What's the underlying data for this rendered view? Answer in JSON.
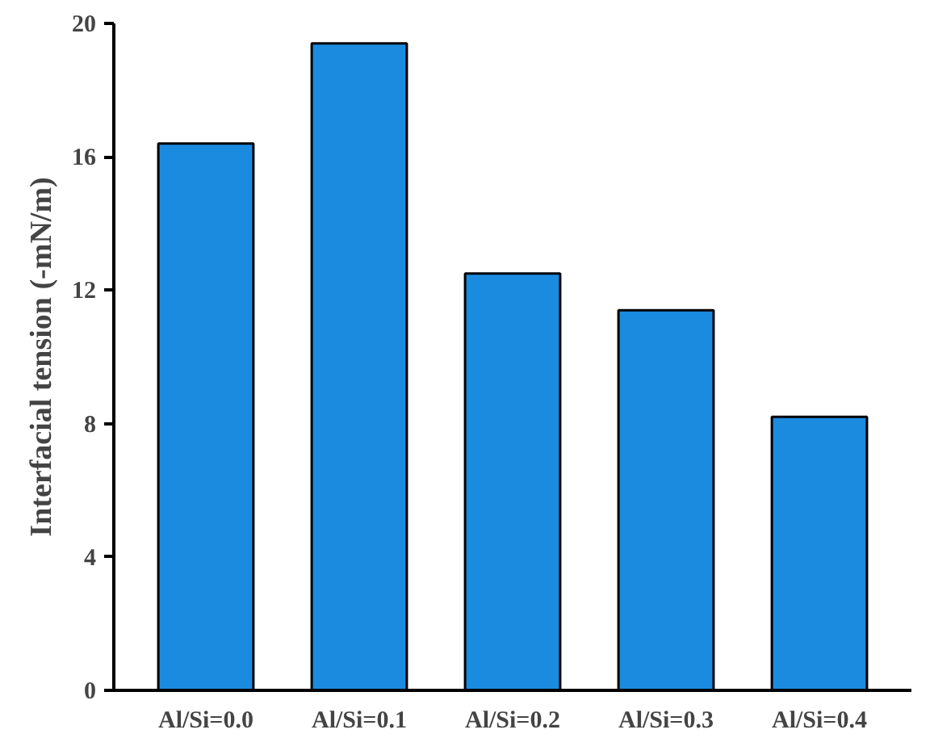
{
  "chart_data": {
    "type": "bar",
    "ylabel": "Interfacial tension (-mN/m)",
    "categories": [
      "Al/Si=0.0",
      "Al/Si=0.1",
      "Al/Si=0.2",
      "Al/Si=0.3",
      "Al/Si=0.4"
    ],
    "values": [
      16.4,
      19.4,
      12.5,
      11.4,
      8.2
    ],
    "color": "#1b8be0",
    "ylim": [
      0,
      20
    ],
    "yticks": [
      0,
      4,
      8,
      12,
      16,
      20
    ],
    "grid": false
  }
}
